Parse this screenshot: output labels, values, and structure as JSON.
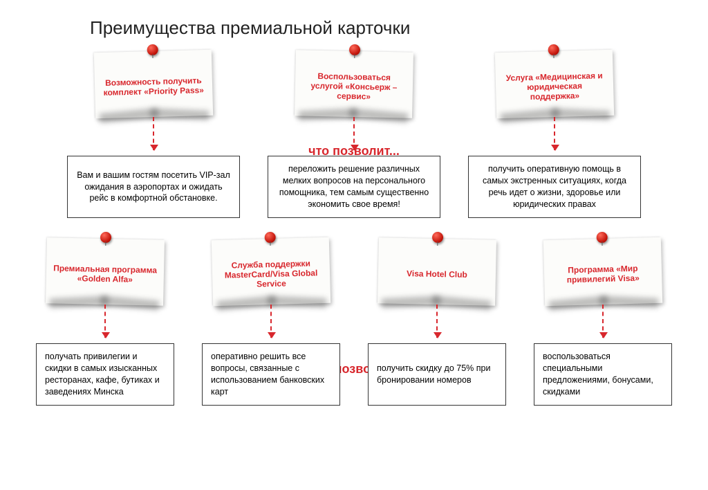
{
  "title": "Преимущества премиальной карточки",
  "section_label_1": "что позволит...",
  "section_label_2": "что позволит..",
  "colors": {
    "accent": "#d8272d",
    "text": "#222222",
    "note_bg": "#fcfcfa",
    "box_border": "#333333",
    "background": "#ffffff",
    "pin_light": "#ff6a5a",
    "pin_dark": "#c2140a"
  },
  "typography": {
    "title_fontsize": 26,
    "section_label_fontsize": 18,
    "note_fontsize": 12,
    "box_fontsize": 12.5
  },
  "row1": {
    "columns": 3,
    "notes": [
      "Возможность получить комплект «Priority Pass»",
      "Воспользоваться услугой «Консьерж – сервис»",
      "Услуга «Медицинская и юридическая поддержка»"
    ],
    "boxes": [
      "Вам и вашим гостям посетить VIP-зал ожидания в аэропортах и ожидать рейс в комфортной обстановке.",
      "переложить решение различных мелких вопросов на персонального помощника, тем самым существенно экономить свое время!",
      "получить оперативную помощь в самых экстренных ситуациях, когда речь идет о жизни, здоровье или юридических правах"
    ]
  },
  "row2": {
    "columns": 4,
    "notes": [
      "Премиальная программа «Golden Alfa»",
      "Служба поддержки MasterCard/Visa Global Service",
      "Visa Hotel Club",
      "Программа «Мир привилегий Visa»"
    ],
    "boxes": [
      "получать привилегии и скидки в самых изысканных ресторанах, кафе, бутиках и заведениях Минска",
      "оперативно решить все вопросы, связанные с использованием банковских карт",
      "получить скидку до 75% при бронировании номеров",
      "воспользоваться специальными предложениями, бонусами, скидками"
    ]
  }
}
